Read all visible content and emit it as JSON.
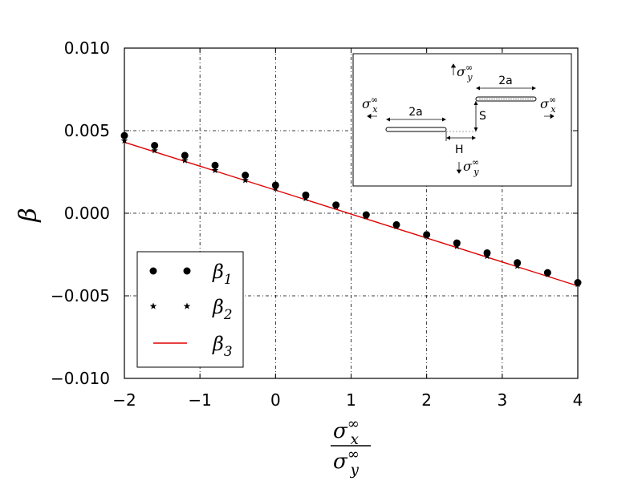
{
  "chart_data": {
    "type": "scatter",
    "xlim": [
      -2,
      4
    ],
    "ylim": [
      -0.01,
      0.01
    ],
    "x_ticks": [
      -2,
      -1,
      0,
      1,
      2,
      3,
      4
    ],
    "x_tick_labels": [
      "−2",
      "−1",
      "0",
      "1",
      "2",
      "3",
      "4"
    ],
    "y_ticks": [
      0.01,
      0.005,
      0.0,
      -0.005,
      -0.01
    ],
    "y_tick_labels": [
      "0.010",
      "0.005",
      "0.000",
      "−0.005",
      "−0.010"
    ],
    "ylabel": "β",
    "xlabel": {
      "numerator": {
        "base": "σ",
        "sub": "x",
        "sup": "∞"
      },
      "denominator": {
        "base": "σ",
        "sub": "y",
        "sup": "∞"
      }
    },
    "grid": true,
    "legend_position": "bottom-left",
    "x": [
      -2.0,
      -1.6,
      -1.2,
      -0.8,
      -0.4,
      0.0,
      0.4,
      0.8,
      1.2,
      1.6,
      2.0,
      2.4,
      2.8,
      3.2,
      3.6,
      4.0
    ],
    "series": [
      {
        "name": "β1",
        "base": "β",
        "sub": "1",
        "marker": "circle",
        "color": "#000000",
        "values": [
          0.0047,
          0.0041,
          0.0035,
          0.0029,
          0.0023,
          0.0017,
          0.0011,
          0.0005,
          -0.0001,
          -0.0007,
          -0.0013,
          -0.0018,
          -0.0024,
          -0.003,
          -0.0036,
          -0.0042
        ]
      },
      {
        "name": "β2",
        "base": "β",
        "sub": "2",
        "marker": "star",
        "color": "#000000",
        "values": [
          0.0044,
          0.0038,
          0.0032,
          0.0026,
          0.002,
          0.0015,
          0.0009,
          0.0004,
          -0.0002,
          -0.0008,
          -0.0014,
          -0.002,
          -0.0026,
          -0.0032,
          -0.0037,
          -0.0043
        ]
      },
      {
        "name": "β3",
        "base": "β",
        "sub": "3",
        "marker": "line",
        "color": "#e00000",
        "line_x": [
          -2,
          4
        ],
        "values": [
          0.0043,
          -0.0044
        ]
      }
    ],
    "inset": {
      "labels": {
        "sx_left": {
          "base": "σ",
          "sub": "x",
          "sup": "∞"
        },
        "sx_right": {
          "base": "σ",
          "sub": "x",
          "sup": "∞"
        },
        "sy_top": {
          "base": "σ",
          "sub": "y",
          "sup": "∞"
        },
        "sy_bottom": {
          "base": "σ",
          "sub": "y",
          "sup": "∞"
        },
        "crack_left": "2a",
        "crack_right": "2a",
        "offset_vertical": "S",
        "offset_horizontal": "H"
      }
    }
  }
}
